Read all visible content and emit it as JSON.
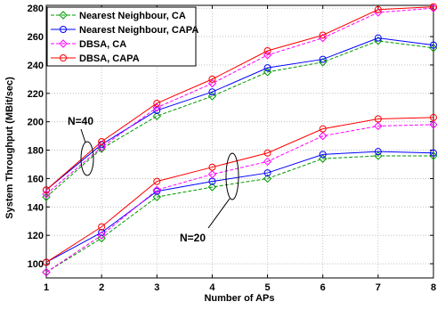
{
  "chart_data": {
    "type": "line",
    "xlabel": "Number of APs",
    "ylabel": "System Throughput (MBit/sec)",
    "xlim": [
      1,
      8
    ],
    "ylim": [
      90,
      282
    ],
    "x_ticks": [
      1,
      2,
      3,
      4,
      5,
      6,
      7,
      8
    ],
    "y_ticks": [
      100,
      120,
      140,
      160,
      180,
      200,
      220,
      240,
      260,
      280
    ],
    "grid": true,
    "legend_position": "top-left",
    "x": [
      1,
      2,
      3,
      4,
      5,
      6,
      7,
      8
    ],
    "series": [
      {
        "name": "Nearest Neighbour, CA",
        "color": "#009900",
        "marker": "diamond",
        "line": "dashed",
        "group": "N=40",
        "values": [
          147,
          181,
          204,
          218,
          235,
          242,
          257,
          252
        ]
      },
      {
        "name": "Nearest Neighbour, CAPA",
        "color": "#0000ff",
        "marker": "circle",
        "line": "solid",
        "group": "N=40",
        "values": [
          152,
          184,
          208,
          221,
          238,
          244,
          259,
          254
        ]
      },
      {
        "name": "DBSA, CA",
        "color": "#ff00ff",
        "marker": "diamond",
        "line": "dashed",
        "group": "N=40",
        "values": [
          149,
          182,
          210,
          227,
          247,
          259,
          277,
          280
        ]
      },
      {
        "name": "DBSA, CAPA",
        "color": "#ff0000",
        "marker": "circle",
        "line": "solid",
        "group": "N=40",
        "values": [
          152,
          186,
          213,
          230,
          250,
          261,
          279,
          281
        ]
      },
      {
        "name": "Nearest Neighbour, CA",
        "color": "#009900",
        "marker": "diamond",
        "line": "dashed",
        "group": "N=20",
        "values": [
          94,
          118,
          147,
          154,
          160,
          174,
          176,
          176
        ]
      },
      {
        "name": "Nearest Neighbour, CAPA",
        "color": "#0000ff",
        "marker": "circle",
        "line": "solid",
        "group": "N=20",
        "values": [
          101,
          122,
          151,
          158,
          164,
          177,
          179,
          178
        ]
      },
      {
        "name": "DBSA, CA",
        "color": "#ff00ff",
        "marker": "diamond",
        "line": "dashed",
        "group": "N=20",
        "values": [
          94,
          120,
          152,
          163,
          172,
          190,
          197,
          198
        ]
      },
      {
        "name": "DBSA, CAPA",
        "color": "#ff0000",
        "marker": "circle",
        "line": "solid",
        "group": "N=20",
        "values": [
          101,
          126,
          158,
          168,
          178,
          195,
          202,
          203
        ]
      }
    ],
    "legend": [
      {
        "label": "Nearest Neighbour, CA",
        "color": "#009900",
        "marker": "diamond",
        "line": "dashed"
      },
      {
        "label": "Nearest Neighbour, CAPA",
        "color": "#0000ff",
        "marker": "circle",
        "line": "solid"
      },
      {
        "label": "DBSA, CA",
        "color": "#ff00ff",
        "marker": "diamond",
        "line": "dashed"
      },
      {
        "label": "DBSA, CAPA",
        "color": "#ff0000",
        "marker": "circle",
        "line": "solid"
      }
    ],
    "annotations": [
      {
        "text": "N=40"
      },
      {
        "text": "N=20"
      }
    ]
  }
}
